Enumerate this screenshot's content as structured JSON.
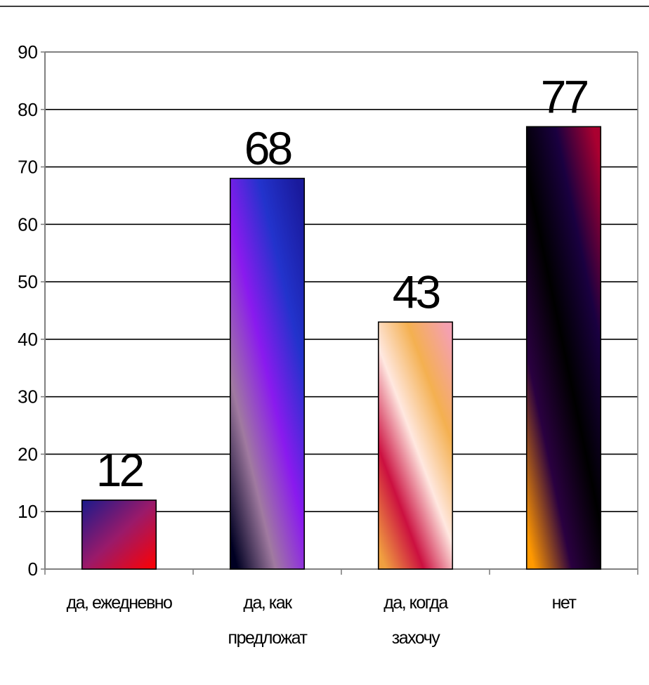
{
  "chart_data": {
    "type": "bar",
    "title": "",
    "xlabel": "",
    "ylabel": "",
    "ylim": [
      0,
      90
    ],
    "yticks": [
      0,
      10,
      20,
      30,
      40,
      50,
      60,
      70,
      80,
      90
    ],
    "grid": true,
    "legend": "none",
    "categories": [
      [
        "да, ежедневно"
      ],
      [
        "да, как",
        "предложат"
      ],
      [
        "да, когда",
        "захочу"
      ],
      [
        "нет"
      ]
    ],
    "values": [
      12,
      68,
      43,
      77
    ],
    "data_labels": [
      "12",
      "68",
      "43",
      "77"
    ]
  },
  "colors": {
    "grid": "#000000",
    "axis": "#808080",
    "bar_outline": "#000000",
    "bar1": [
      "#1a1a8c",
      "#9a1a6a",
      "#ff0000"
    ],
    "bar2": [
      "#1a1a9c",
      "#2233cc",
      "#8a1aee",
      "#a07aa0",
      "#000022"
    ],
    "bar3": [
      "#f4a0b0",
      "#f4b050",
      "#ffe8e0",
      "#cc1040",
      "#f0a040"
    ],
    "bar4": [
      "#aa0030",
      "#1a0040",
      "#000000",
      "#2a0040",
      "#ff9900"
    ]
  }
}
